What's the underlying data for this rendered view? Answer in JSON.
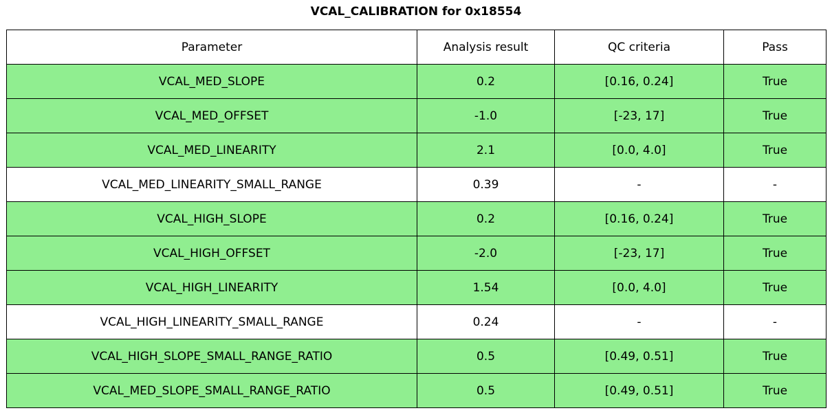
{
  "figure": {
    "title": "VCAL_CALIBRATION for 0x18554"
  },
  "colors": {
    "pass_green": "#90EE90",
    "no_qc_white": "#ffffff",
    "border_black": "#000000"
  },
  "table": {
    "headers": [
      "Parameter",
      "Analysis result",
      "QC criteria",
      "Pass"
    ],
    "rows": [
      {
        "param": "VCAL_MED_SLOPE",
        "result": "0.2",
        "qc": "[0.16, 0.24]",
        "pass": "True",
        "highlight": true
      },
      {
        "param": "VCAL_MED_OFFSET",
        "result": "-1.0",
        "qc": "[-23, 17]",
        "pass": "True",
        "highlight": true
      },
      {
        "param": "VCAL_MED_LINEARITY",
        "result": "2.1",
        "qc": "[0.0, 4.0]",
        "pass": "True",
        "highlight": true
      },
      {
        "param": "VCAL_MED_LINEARITY_SMALL_RANGE",
        "result": "0.39",
        "qc": "-",
        "pass": "-",
        "highlight": false
      },
      {
        "param": "VCAL_HIGH_SLOPE",
        "result": "0.2",
        "qc": "[0.16, 0.24]",
        "pass": "True",
        "highlight": true
      },
      {
        "param": "VCAL_HIGH_OFFSET",
        "result": "-2.0",
        "qc": "[-23, 17]",
        "pass": "True",
        "highlight": true
      },
      {
        "param": "VCAL_HIGH_LINEARITY",
        "result": "1.54",
        "qc": "[0.0, 4.0]",
        "pass": "True",
        "highlight": true
      },
      {
        "param": "VCAL_HIGH_LINEARITY_SMALL_RANGE",
        "result": "0.24",
        "qc": "-",
        "pass": "-",
        "highlight": false
      },
      {
        "param": "VCAL_HIGH_SLOPE_SMALL_RANGE_RATIO",
        "result": "0.5",
        "qc": "[0.49, 0.51]",
        "pass": "True",
        "highlight": true
      },
      {
        "param": "VCAL_MED_SLOPE_SMALL_RANGE_RATIO",
        "result": "0.5",
        "qc": "[0.49, 0.51]",
        "pass": "True",
        "highlight": true
      }
    ]
  },
  "chart_data": {
    "type": "table",
    "title": "VCAL_CALIBRATION for 0x18554",
    "columns": [
      "Parameter",
      "Analysis result",
      "QC criteria",
      "Pass"
    ],
    "rows": [
      [
        "VCAL_MED_SLOPE",
        "0.2",
        "[0.16, 0.24]",
        "True"
      ],
      [
        "VCAL_MED_OFFSET",
        "-1.0",
        "[-23, 17]",
        "True"
      ],
      [
        "VCAL_MED_LINEARITY",
        "2.1",
        "[0.0, 4.0]",
        "True"
      ],
      [
        "VCAL_MED_LINEARITY_SMALL_RANGE",
        "0.39",
        "-",
        "-"
      ],
      [
        "VCAL_HIGH_SLOPE",
        "0.2",
        "[0.16, 0.24]",
        "True"
      ],
      [
        "VCAL_HIGH_OFFSET",
        "-2.0",
        "[-23, 17]",
        "True"
      ],
      [
        "VCAL_HIGH_LINEARITY",
        "1.54",
        "[0.0, 4.0]",
        "True"
      ],
      [
        "VCAL_HIGH_LINEARITY_SMALL_RANGE",
        "0.24",
        "-",
        "-"
      ],
      [
        "VCAL_HIGH_SLOPE_SMALL_RANGE_RATIO",
        "0.5",
        "[0.49, 0.51]",
        "True"
      ],
      [
        "VCAL_MED_SLOPE_SMALL_RANGE_RATIO",
        "0.5",
        "[0.49, 0.51]",
        "True"
      ]
    ],
    "row_highlight_green": [
      true,
      true,
      true,
      false,
      true,
      true,
      true,
      false,
      true,
      true
    ],
    "legend_position": "none",
    "grid": "full-cell-borders"
  }
}
